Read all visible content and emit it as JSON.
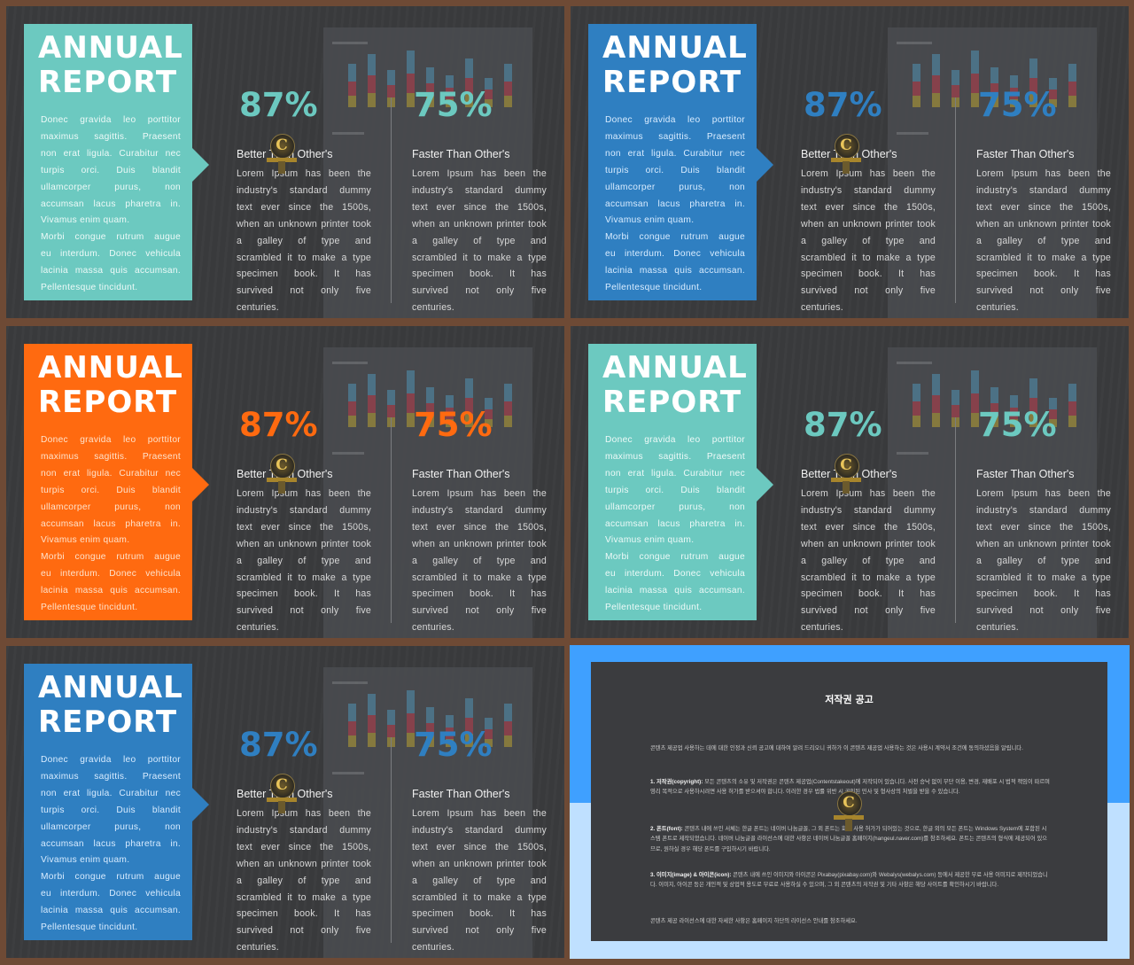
{
  "slides": [
    {
      "id": "s1",
      "panel_color": "#6cc9c0",
      "panel_text_color": "#eefaf8",
      "stat_color": "#6cc9c0"
    },
    {
      "id": "s2",
      "panel_color": "#2f7fc1",
      "panel_text_color": "#d9ecff",
      "stat_color": "#2f7fc1"
    },
    {
      "id": "s3",
      "panel_color": "#ff6a10",
      "panel_text_color": "#ffe3cc",
      "stat_color": "#ff6a10"
    },
    {
      "id": "s4",
      "panel_color": "#6cc9c0",
      "panel_text_color": "#eefaf8",
      "stat_color": "#6cc9c0"
    },
    {
      "id": "s5",
      "panel_color": "#2f7fc1",
      "panel_text_color": "#d9ecff",
      "stat_color": "#2f7fc1"
    }
  ],
  "report": {
    "title_line1": "ANNUAL",
    "title_line2": "REPORT",
    "panel_lines": [
      "Donec gravida leo porttitor",
      "maximus sagittis. Praesent",
      "non erat ligula. Curabitur nec",
      "turpis orci. Duis blandit",
      "ullamcorper purus, non",
      "accumsan lacus pharetra in.",
      "Vivamus enim quam.",
      "Morbi congue rutrum augue",
      "eu interdum. Donec vehicula",
      "lacinia massa quis accumsan.",
      "Pellentesque tincidunt."
    ],
    "stat1_value": "87%",
    "stat1_label": "Better Than Other's",
    "stat2_value": "75%",
    "stat2_label": "Faster Than Other's",
    "stat_lines": [
      "Lorem Ipsum has been the",
      "industry's standard dummy",
      "text ever since the 1500s,",
      "when an unknown printer took",
      "a galley of type and",
      "scrambled it to make a type",
      "specimen book. It has",
      "survived not only five",
      "centuries."
    ]
  },
  "chart_bars": [
    [
      0.55,
      0.45,
      0.35
    ],
    [
      0.65,
      0.55,
      0.45
    ],
    [
      0.45,
      0.4,
      0.3
    ],
    [
      0.7,
      0.6,
      0.45
    ],
    [
      0.5,
      0.4,
      0.35
    ],
    [
      0.4,
      0.35,
      0.25
    ],
    [
      0.6,
      0.5,
      0.4
    ],
    [
      0.35,
      0.3,
      0.25
    ],
    [
      0.55,
      0.45,
      0.35
    ]
  ],
  "chart_colors": [
    "#4d7f98",
    "#9b3f4b",
    "#9a8a3a"
  ],
  "logo_letter": "C",
  "notice": {
    "title": "저작권 공고",
    "intro": "콘텐츠 제공업 사용하는 데에 대한 인정과 신뢰 공고에 대하여 알려 드리오니 귀하가 이 콘텐츠 제공업 사용하는 것은 사용시 계약서 조건에 동의하셨음을 알립니다.",
    "p1_head": "1. 저작권(copyright):",
    "p1_body": " 모든 콘텐츠의 소유 및 저작권은 콘텐츠 제공업(Contentstakeout)에 저작되어 있습니다. 사전 승낙 없이 무단 이용, 변경, 재배포 시 법적 책임이 따르며 영리 목적으로 사용하시려면 사용 허가를 받으셔야 합니다. 이러한 경우 법률 위반 시 공인된 민사 및 형사상의 처벌을 받을 수 있습니다.",
    "p2_head": "2. 폰트(font):",
    "p2_body": " 콘텐츠 내에 쓰인 서체는 한글 폰트는 네이버 나눔글꼴, 그 외 폰트는 회사 사용 허가가 되어있는 것으로, 한글 외의 모든 폰트는 Windows System에 포함된 시스템 폰트로 제작되었습니다. 네이버 나눔글꼴 라이선스에 대한 사항은 네이버 나눔글꼴 홈페이지(hangeul.naver.com)를 참조하세요. 폰트는 콘텐츠의 형식에 제공되어 있으므로, 원하실 경우 해당 폰트를 구입하시기 바랍니다.",
    "p3_head": "3. 이미지(image) & 아이콘(icon):",
    "p3_body": " 콘텐츠 내에 쓰인 이미지와 아이콘은 Pixabay(pixabay.com)와 Webalys(webalys.com) 등에서 제공한 무료 사용 이미지로 제작되었습니다. 이미지, 아이콘 등은 개인적 및 상업적 용도로 무료로 사용하실 수 있으며, 그 외 콘텐츠의 저작권 및 기타 사항은 해당 사이트를 확인하시기 바랍니다.",
    "closing": "콘텐츠 제공 라이선스에 대한 자세한 사항은 홈페이지 하단의 라이선스 안내를 참조하세요."
  }
}
